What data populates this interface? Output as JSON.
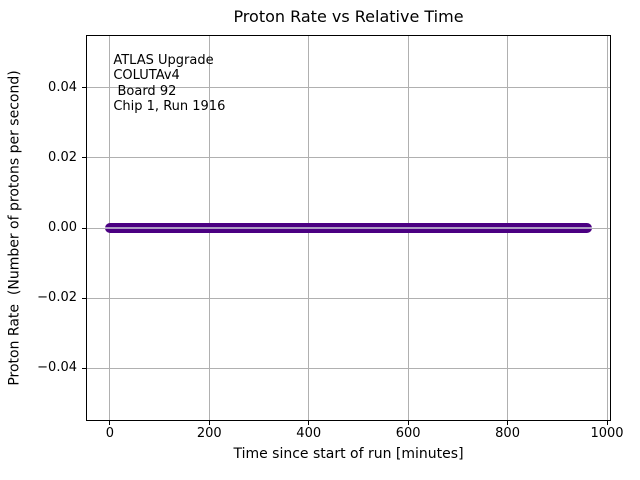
{
  "chart_data": {
    "type": "scatter",
    "title": "Proton Rate vs Relative Time",
    "xlabel": "Time since start of run [minutes]",
    "ylabel": "Proton Rate  (Number of protons per second)",
    "xlim": [
      -48,
      1008
    ],
    "ylim": [
      -0.055,
      0.055
    ],
    "grid": true,
    "legend": "none",
    "xticks": [
      {
        "v": 0,
        "label": "0"
      },
      {
        "v": 200,
        "label": "200"
      },
      {
        "v": 400,
        "label": "400"
      },
      {
        "v": 600,
        "label": "600"
      },
      {
        "v": 800,
        "label": "800"
      },
      {
        "v": 1000,
        "label": "1000"
      }
    ],
    "yticks": [
      {
        "v": 0.04,
        "label": "0.04"
      },
      {
        "v": 0.02,
        "label": "0.02"
      },
      {
        "v": 0,
        "label": "0.00"
      },
      {
        "v": -0.02,
        "label": "−0.02"
      },
      {
        "v": -0.04,
        "label": "−0.04"
      }
    ],
    "series": [
      {
        "name": "proton_rate",
        "marker": "o",
        "color": "#4B0082",
        "core_color": "#b2a4c6",
        "x_start": 0,
        "x_end": 960,
        "y_value": 0,
        "points": "dense run of circle markers, all at 0 protons per second"
      }
    ],
    "annotation": {
      "x": 7,
      "y": 0.05,
      "lines": [
        "ATLAS Upgrade",
        "COLUTAv4",
        " Board 92",
        "Chip 1, Run 1916"
      ]
    }
  }
}
